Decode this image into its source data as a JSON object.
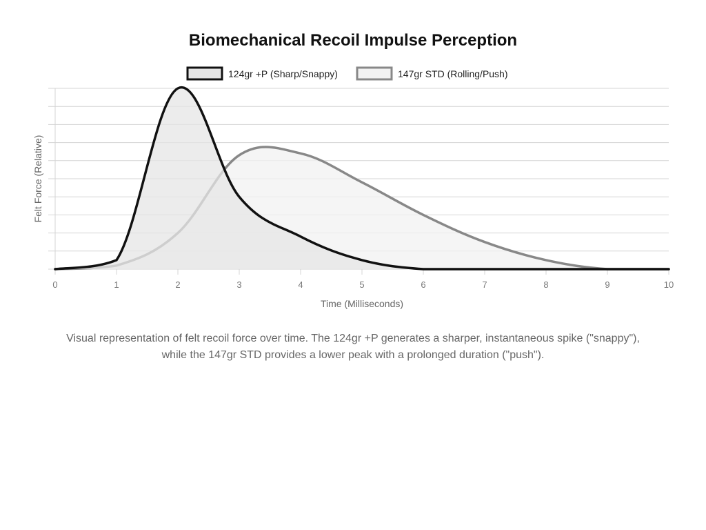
{
  "chart_data": {
    "type": "area",
    "title": "Biomechanical Recoil Impulse Perception",
    "xlabel": "Time (Milliseconds)",
    "ylabel": "Felt Force (Relative)",
    "xlim": [
      0,
      10
    ],
    "ylim": [
      0,
      100
    ],
    "x_ticks": [
      "0",
      "1",
      "2",
      "3",
      "4",
      "5",
      "6",
      "7",
      "8",
      "9",
      "10"
    ],
    "y_tick_labels_shown": false,
    "grid": true,
    "legend_position": "top-center",
    "series": [
      {
        "name": "124gr +P (Sharp/Snappy)",
        "color": "#111111",
        "fill": "#e6e6e6",
        "x": [
          0,
          1,
          2,
          3,
          4,
          5,
          6,
          7,
          8,
          9,
          10
        ],
        "y": [
          0,
          5,
          100,
          40,
          18,
          5,
          0,
          0,
          0,
          0,
          0
        ]
      },
      {
        "name": "147gr STD (Rolling/Push)",
        "color": "#888888",
        "fill": "#f2f2f2",
        "x": [
          0,
          1,
          2,
          3,
          4,
          5,
          6,
          7,
          8,
          9,
          10
        ],
        "y": [
          0,
          2,
          20,
          63,
          64,
          48,
          30,
          15,
          5,
          0,
          0
        ]
      }
    ]
  },
  "caption": {
    "line1": "Visual representation of felt recoil force over time. The 124gr +P generates a sharper, instantaneous spike (\"snappy\"),",
    "line2": "while the 147gr STD provides a lower peak with a prolonged duration (\"push\")."
  }
}
